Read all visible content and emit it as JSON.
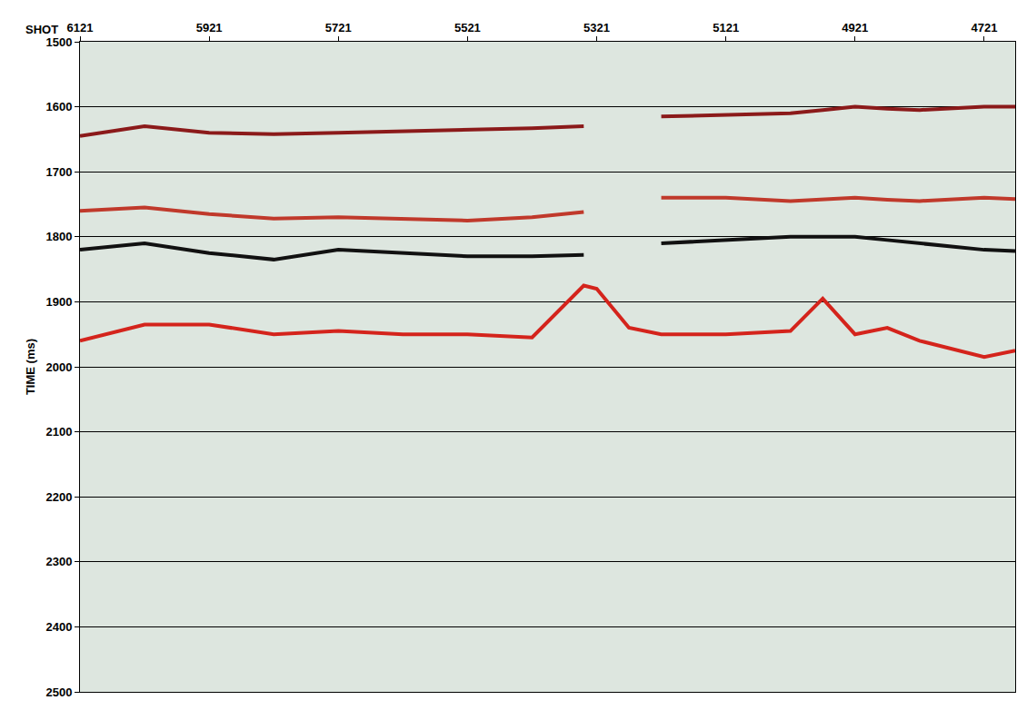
{
  "chart_data": {
    "type": "line",
    "xlabel": "SHOT",
    "ylabel": "TIME (ms)",
    "x": [
      6121,
      6021,
      5921,
      5821,
      5721,
      5621,
      5521,
      5421,
      5341,
      5321,
      5271,
      5221,
      5121,
      5021,
      4971,
      4921,
      4871,
      4821,
      4721,
      4673
    ],
    "series": [
      {
        "color": "#8b1a1a",
        "values": [
          1645,
          1630,
          1640,
          1642,
          1640,
          1638,
          1636,
          1633,
          1630,
          null,
          null,
          1615,
          1612,
          1610,
          1605,
          1600,
          1603,
          1605,
          1600,
          1600
        ]
      },
      {
        "color": "#c0392b",
        "values": [
          1760,
          1755,
          1765,
          1772,
          1770,
          1772,
          1775,
          1770,
          1762,
          null,
          null,
          1740,
          1740,
          1745,
          1742,
          1740,
          1743,
          1745,
          1740,
          1742
        ]
      },
      {
        "color": "#111111",
        "values": [
          1820,
          1810,
          1825,
          1835,
          1820,
          1825,
          1830,
          1830,
          1828,
          null,
          null,
          1810,
          1805,
          1800,
          1800,
          1800,
          1805,
          1810,
          1820,
          1822
        ]
      },
      {
        "color": "#d4241c",
        "values": [
          1960,
          1935,
          1935,
          1950,
          1945,
          1950,
          1950,
          1955,
          1875,
          1880,
          1940,
          1950,
          1950,
          1945,
          1895,
          1950,
          1940,
          1960,
          1985,
          1975
        ]
      }
    ],
    "xlim": [
      6121,
      4673
    ],
    "xticks": [
      6121,
      5921,
      5721,
      5521,
      5321,
      5121,
      4921,
      4721
    ],
    "ylim": [
      1500,
      2500
    ],
    "yticks": [
      1500,
      1600,
      1700,
      1800,
      1900,
      2000,
      2100,
      2200,
      2300,
      2400,
      2500
    ],
    "grid": true
  }
}
